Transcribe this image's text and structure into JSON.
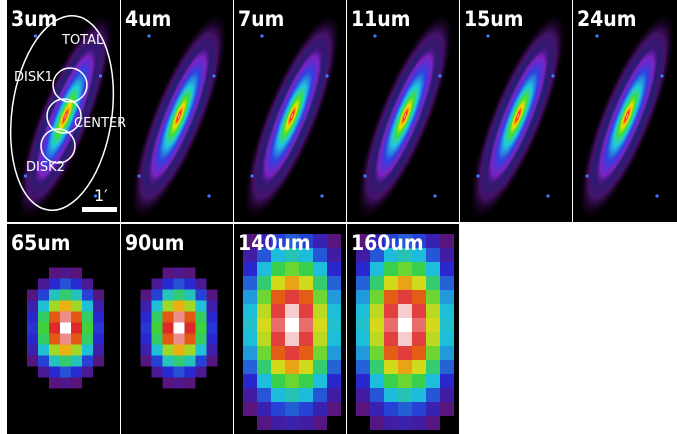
{
  "panels": [
    {
      "label": "3um"
    },
    {
      "label": "4um"
    },
    {
      "label": "7um"
    },
    {
      "label": "11um"
    },
    {
      "label": "15um"
    },
    {
      "label": "24um"
    },
    {
      "label": "65um"
    },
    {
      "label": "90um"
    },
    {
      "label": "140um"
    },
    {
      "label": "160um"
    }
  ],
  "annotations": {
    "total": "TOTAL",
    "disk1": "DISK1",
    "center": "CENTER",
    "disk2": "DISK2",
    "scale": "1′"
  }
}
